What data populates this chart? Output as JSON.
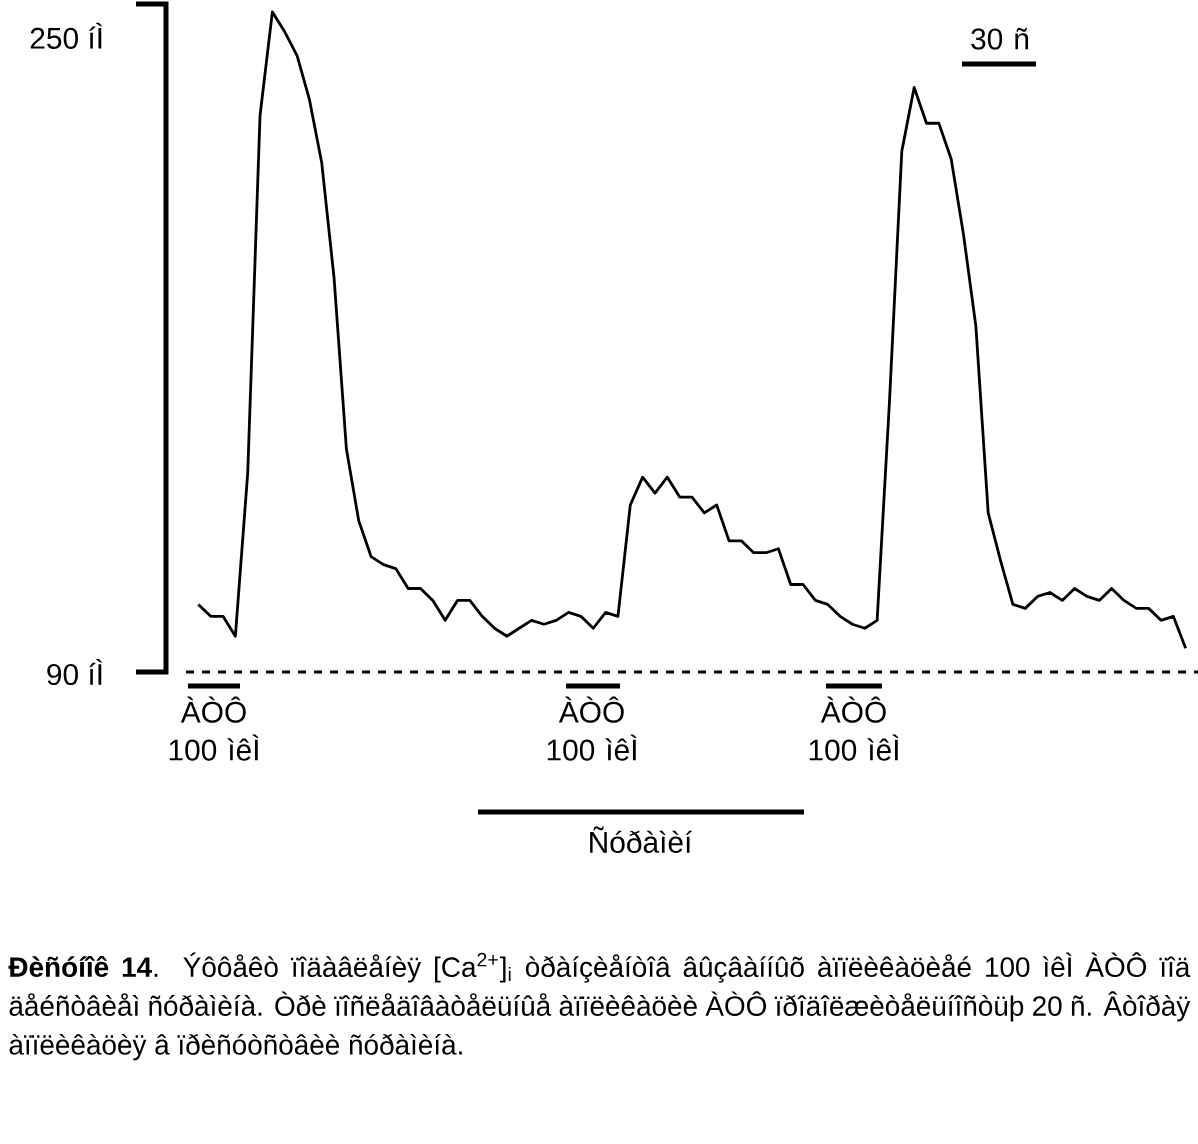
{
  "chart_data": {
    "type": "line",
    "categories": [
      null,
      null,
      null,
      null,
      null,
      null,
      null,
      null,
      null,
      null,
      null,
      null,
      null,
      null,
      null,
      null,
      null,
      null,
      null,
      null,
      null,
      null,
      null,
      null,
      null,
      null,
      null,
      null,
      null,
      null,
      null,
      null,
      null,
      null,
      null,
      null,
      null,
      null,
      null,
      null,
      null,
      null,
      null,
      null,
      null,
      null,
      null,
      null,
      null,
      null,
      null,
      null,
      null,
      null,
      null,
      null,
      null,
      null,
      null,
      null,
      null,
      null,
      null,
      null,
      null,
      null,
      null,
      null,
      null,
      null,
      null,
      null,
      null,
      null,
      null,
      null,
      null,
      null,
      null,
      null,
      null
    ],
    "series": [
      {
        "color": "#000000",
        "values": [
          107,
          104,
          104,
          99,
          140,
          230,
          256,
          251,
          245,
          234,
          218,
          189,
          146,
          128,
          119,
          117,
          116,
          111,
          111,
          108,
          103,
          108,
          108,
          104,
          101,
          99,
          101,
          103,
          102,
          103,
          105,
          104,
          101,
          105,
          104,
          132,
          139,
          135,
          139,
          134,
          134,
          130,
          132,
          123,
          123,
          120,
          120,
          121,
          112,
          112,
          108,
          107,
          104,
          102,
          101,
          103,
          158,
          221,
          237,
          228,
          228,
          219,
          200,
          177,
          130,
          118,
          107,
          106,
          109,
          110,
          108,
          111,
          109,
          108,
          111,
          108,
          106,
          106,
          103,
          104,
          96
        ]
      }
    ],
    "ylim": [
      90,
      258
    ],
    "yticks": [
      {
        "value": 90,
        "label": "90 íÌ"
      },
      {
        "value": 250,
        "label": "250 íÌ"
      }
    ],
    "tick_labels": "y",
    "ref_lines": [
      {
        "axis": "y",
        "value": 90,
        "line_style": "dashed"
      }
    ],
    "annotations": [
      "30 ñ",
      "ÀÒÔ 100 ìêÌ",
      "ÀÒÔ 100 ìêÌ",
      "ÀÒÔ 100 ìêÌ",
      "Ñóðàìèí",
      "**Ðèñóíîê 14**. Ýôôåêò ïîäàâëåíèÿ [Ca$^{2+}$]$_{i}$ òðàíçèåíòîâ âûçâàííûõ àïïëèêàöèåé 100 ìêÌ ÀÒÔ ïîä äåéñòâèåì ñóðàìèíà. Òðè ïîñëåäîâàòåëüíûå àïïëèêàöèè ÀÒÔ ïðîäîëæèòåëüíîñòüþ 20 ñ. Âòîðàÿ àïïëèêàöèÿ â ïðèñóòñòâèè ñóðàìèíà."
    ]
  }
}
